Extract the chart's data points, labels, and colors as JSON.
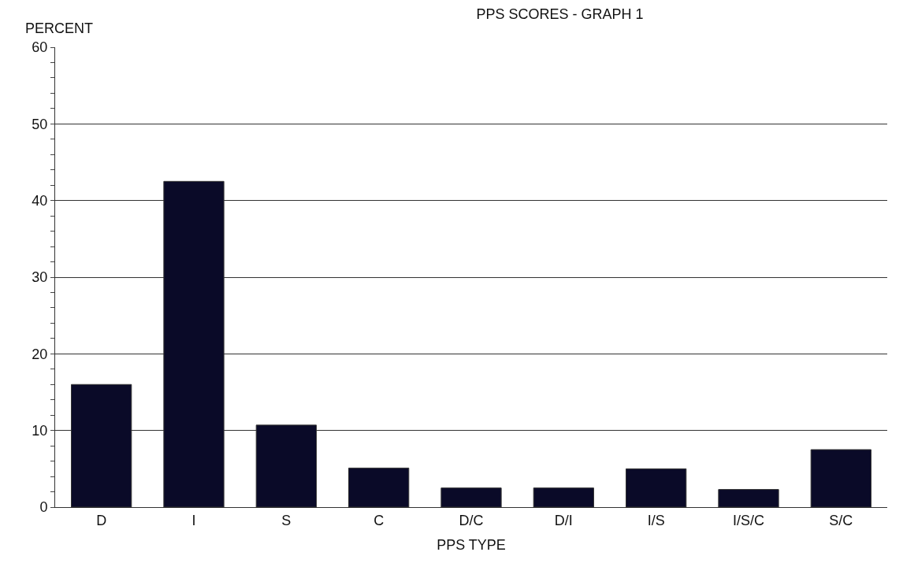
{
  "chart_data": {
    "type": "bar",
    "title": "PPS SCORES - GRAPH 1",
    "xlabel": "PPS TYPE",
    "ylabel": "PERCENT",
    "categories": [
      "D",
      "I",
      "S",
      "C",
      "D/C",
      "D/I",
      "I/S",
      "I/S/C",
      "S/C"
    ],
    "values": [
      16,
      42.5,
      10.7,
      5.1,
      2.5,
      2.5,
      5,
      2.3,
      7.5
    ],
    "color": "#0a0a28",
    "ylim": [
      0,
      60
    ],
    "yticks": [
      0,
      10,
      20,
      30,
      40,
      50,
      60
    ],
    "grid": "y"
  }
}
